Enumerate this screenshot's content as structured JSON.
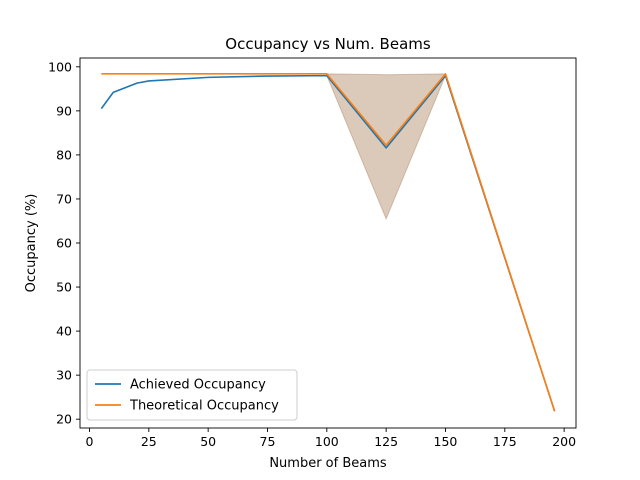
{
  "chart_data": {
    "type": "line",
    "title": "Occupancy vs Num. Beams",
    "xlabel": "Number of Beams",
    "ylabel": "Occupancy (%)",
    "xlim": [
      -4,
      205
    ],
    "ylim": [
      18,
      102
    ],
    "xticks": [
      0,
      25,
      50,
      75,
      100,
      125,
      150,
      175,
      200
    ],
    "yticks": [
      20,
      30,
      40,
      50,
      60,
      70,
      80,
      90,
      100
    ],
    "legend_position": "lower-left",
    "grid": false,
    "series": [
      {
        "name": "Achieved Occupancy",
        "color": "#1f77b4",
        "x": [
          5,
          10,
          20,
          25,
          50,
          75,
          100,
          125,
          150,
          196
        ],
        "y": [
          90.5,
          94.2,
          96.3,
          96.8,
          97.6,
          97.9,
          98.0,
          81.6,
          98.0,
          21.8
        ]
      },
      {
        "name": "Theoretical Occupancy",
        "color": "#ff7f0e",
        "x": [
          5,
          10,
          20,
          25,
          50,
          75,
          100,
          125,
          150,
          196
        ],
        "y": [
          98.4,
          98.4,
          98.4,
          98.4,
          98.4,
          98.4,
          98.4,
          82.2,
          98.4,
          21.8
        ]
      }
    ],
    "band": {
      "color": "#a0704a",
      "opacity": 0.38,
      "x": [
        100,
        125,
        150
      ],
      "upper": [
        98.4,
        98.2,
        98.4
      ],
      "lower": [
        98.0,
        65.5,
        98.0
      ]
    }
  }
}
